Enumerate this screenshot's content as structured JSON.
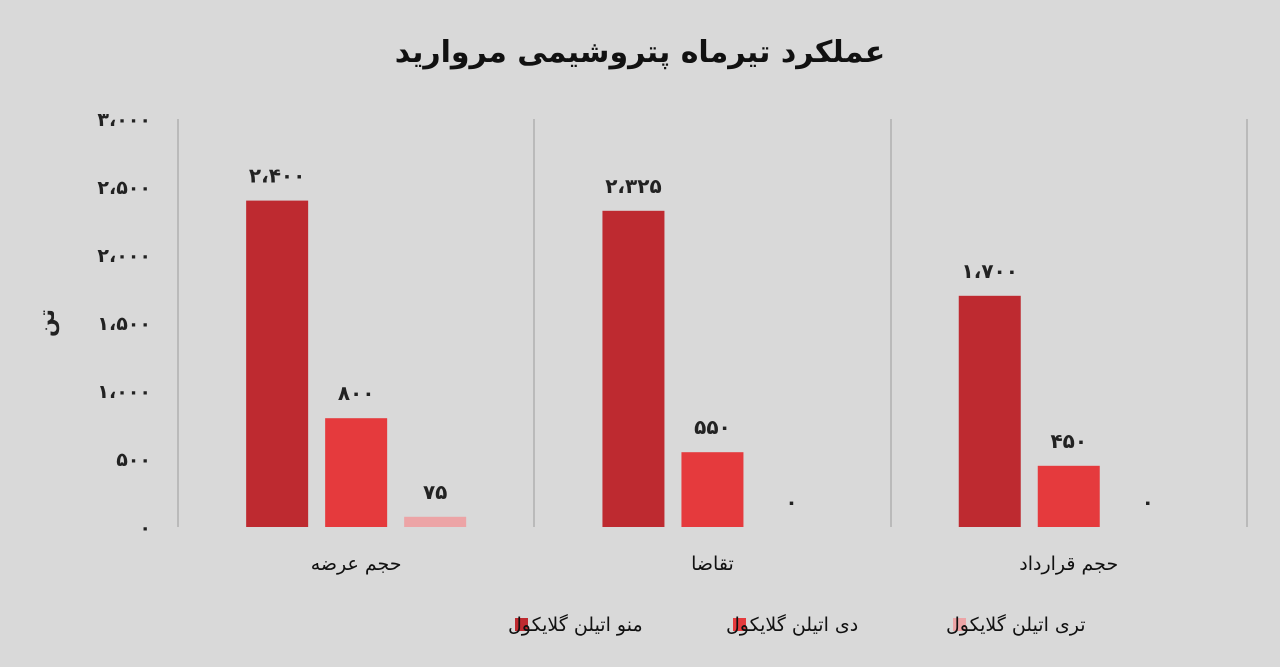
{
  "chart_data": {
    "type": "bar",
    "title": "عملکرد تیرماه پتروشیمی مروارید",
    "ylabel": "تن",
    "ylim": [
      0,
      3000
    ],
    "yticks": [
      0,
      500,
      1000,
      1500,
      2000,
      2500,
      3000
    ],
    "ytick_labels": [
      "۰",
      "۵۰۰",
      "۱،۰۰۰",
      "۱،۵۰۰",
      "۲،۰۰۰",
      "۲،۵۰۰",
      "۳،۰۰۰"
    ],
    "categories": [
      "حجم عرضه",
      "تقاضا",
      "حجم قرارداد"
    ],
    "grid": false,
    "legend_position": "bottom",
    "series": [
      {
        "name": "منو اتیلن گلایکول",
        "color": "#be2a30",
        "values": [
          2400,
          2325,
          1700
        ],
        "labels": [
          "۲،۴۰۰",
          "۲،۳۲۵",
          "۱،۷۰۰"
        ]
      },
      {
        "name": "دی اتیلن گلایکول",
        "color": "#e53a3d",
        "values": [
          800,
          550,
          450
        ],
        "labels": [
          "۸۰۰",
          "۵۵۰",
          "۴۵۰"
        ]
      },
      {
        "name": "تری اتیلن گلایکول",
        "color": "#eca4a6",
        "values": [
          75,
          0,
          0
        ],
        "labels": [
          "۷۵",
          "۰",
          "۰"
        ]
      }
    ]
  }
}
